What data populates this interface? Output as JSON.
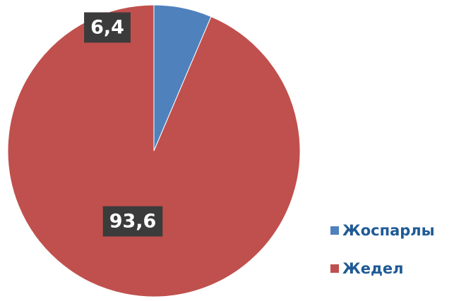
{
  "chart_data": {
    "type": "pie",
    "categories": [
      "Жоспарлы",
      "Жедел"
    ],
    "values": [
      6.4,
      93.6
    ],
    "value_labels": [
      "6,4",
      "93,6"
    ],
    "colors": [
      "#4f81bd",
      "#c0504d"
    ],
    "legend_placement": "right",
    "title": "",
    "label_style": {
      "box_color": "#3b3b3b",
      "text_color": "#ffffff"
    },
    "legend_text_color": "#1f5a96"
  }
}
